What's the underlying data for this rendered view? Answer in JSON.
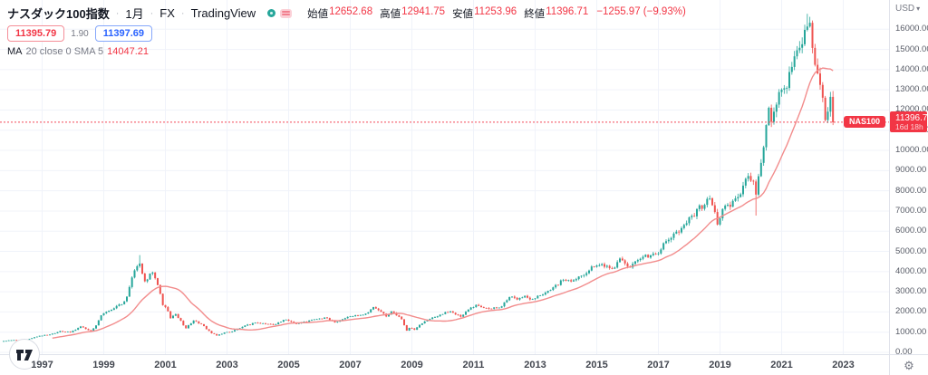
{
  "header": {
    "title": "ナスダック100指数",
    "separator": "·",
    "timeframe": "1月",
    "market": "FX",
    "brand": "TradingView",
    "ohlc": {
      "open_label": "始値",
      "open_value": "12652.68",
      "high_label": "高値",
      "high_value": "12941.75",
      "low_label": "安値",
      "low_value": "11253.96",
      "close_label": "終値",
      "close_value": "11396.71",
      "change_value": "−1255.97 (−9.93%)"
    },
    "quote": {
      "bid": "11395.79",
      "spread": "1.90",
      "ask": "11397.69"
    },
    "indicator": {
      "name": "MA",
      "params": "20 close 0 SMA 5",
      "value": "14047.21"
    }
  },
  "price_axis": {
    "currency": "USD",
    "caret": "▾",
    "badge": {
      "symbol": "NAS100",
      "price": "11396.71",
      "countdown": "16d 18h"
    }
  },
  "colors": {
    "up": "#26a69a",
    "down": "#ef5350",
    "ma_line": "#f28c8c",
    "accent_red": "#f23645",
    "accent_blue": "#2962ff",
    "grid": "#f0f3fa",
    "axis_border": "#e0e3eb"
  },
  "chart_data": {
    "type": "candlestick",
    "title": "ナスダック100指数 (NAS100) 1月 FX",
    "symbol": "NAS100",
    "timeframe": "1月 (monthly)",
    "legend": [
      "NAS100 monthly candles",
      "MA 20 close (SMA)"
    ],
    "x_axis": {
      "tick_years": [
        1997,
        1999,
        2001,
        2003,
        2005,
        2007,
        2009,
        2011,
        2013,
        2015,
        2017,
        2019,
        2021,
        2023
      ]
    },
    "y_axis": {
      "ticks": [
        0,
        1000,
        2000,
        3000,
        4000,
        5000,
        6000,
        7000,
        8000,
        9000,
        10000,
        11000,
        12000,
        13000,
        14000,
        15000,
        16000
      ],
      "unit": "USD",
      "format": "0.00"
    },
    "months": 324,
    "start_month": "1995-10",
    "end_month": "2022-09",
    "current_price": 11396.71,
    "last_candle": {
      "open": 12652.68,
      "high": 12941.75,
      "low": 11253.96,
      "close": 11396.71,
      "change": -1255.97,
      "change_pct": -9.93
    },
    "ma": {
      "type": "SMA",
      "period": 20,
      "source": "close",
      "last_value": 14047.21
    },
    "anchors_monthly_close": [
      [
        0,
        560
      ],
      [
        3,
        600
      ],
      [
        9,
        635
      ],
      [
        14,
        821
      ],
      [
        18,
        880
      ],
      [
        22,
        1055
      ],
      [
        26,
        990
      ],
      [
        30,
        1280
      ],
      [
        34,
        1065
      ],
      [
        36,
        1335
      ],
      [
        38,
        1836
      ],
      [
        41,
        2063
      ],
      [
        44,
        2296
      ],
      [
        46,
        2380
      ],
      [
        48,
        2760
      ],
      [
        50,
        3707
      ],
      [
        52,
        4266
      ],
      [
        53,
        4398
      ],
      [
        55,
        3520
      ],
      [
        58,
        3953
      ],
      [
        60,
        3334
      ],
      [
        62,
        2341
      ],
      [
        64,
        2034
      ],
      [
        65,
        1691
      ],
      [
        67,
        1892
      ],
      [
        71,
        1192
      ],
      [
        74,
        1577
      ],
      [
        77,
        1392
      ],
      [
        81,
        943
      ],
      [
        83,
        832
      ],
      [
        86,
        984
      ],
      [
        89,
        1033
      ],
      [
        93,
        1262
      ],
      [
        98,
        1467
      ],
      [
        105,
        1376
      ],
      [
        110,
        1621
      ],
      [
        114,
        1422
      ],
      [
        122,
        1645
      ],
      [
        126,
        1700
      ],
      [
        129,
        1480
      ],
      [
        134,
        1756
      ],
      [
        141,
        1920
      ],
      [
        144,
        2239
      ],
      [
        146,
        2085
      ],
      [
        149,
        1780
      ],
      [
        151,
        2033
      ],
      [
        155,
        1636
      ],
      [
        157,
        1076
      ],
      [
        158,
        1212
      ],
      [
        160,
        1117
      ],
      [
        161,
        1238
      ],
      [
        165,
        1608
      ],
      [
        170,
        1860
      ],
      [
        174,
        2029
      ],
      [
        178,
        1766
      ],
      [
        182,
        2218
      ],
      [
        184,
        2350
      ],
      [
        190,
        2163
      ],
      [
        194,
        2278
      ],
      [
        197,
        2738
      ],
      [
        200,
        2615
      ],
      [
        203,
        2799
      ],
      [
        205,
        2620
      ],
      [
        213,
        3090
      ],
      [
        218,
        3592
      ],
      [
        222,
        3571
      ],
      [
        230,
        4236
      ],
      [
        233,
        4370
      ],
      [
        238,
        4200
      ],
      [
        240,
        4646
      ],
      [
        244,
        4201
      ],
      [
        249,
        4730
      ],
      [
        254,
        4863
      ],
      [
        261,
        5880
      ],
      [
        266,
        6396
      ],
      [
        268,
        6760
      ],
      [
        275,
        7627
      ],
      [
        277,
        6949
      ],
      [
        278,
        6330
      ],
      [
        280,
        7101
      ],
      [
        283,
        7209
      ],
      [
        286,
        7691
      ],
      [
        290,
        8733
      ],
      [
        292,
        8461
      ],
      [
        293,
        7813
      ],
      [
        296,
        10157
      ],
      [
        298,
        12110
      ],
      [
        299,
        11418
      ],
      [
        301,
        12268
      ],
      [
        302,
        12888
      ],
      [
        305,
        13092
      ],
      [
        309,
        14960
      ],
      [
        313,
        16136
      ],
      [
        314,
        16320
      ],
      [
        316,
        14238
      ],
      [
        318,
        13245
      ],
      [
        320,
        11504
      ],
      [
        322,
        12652.68
      ],
      [
        323,
        11396.71
      ]
    ],
    "special_candles": {
      "53": {
        "high": 4816
      },
      "293": {
        "low": 6772
      },
      "313": {
        "high": 16765
      },
      "323": {
        "open": 12652.68,
        "high": 12941.75,
        "low": 11253.96,
        "close": 11396.71
      }
    }
  }
}
